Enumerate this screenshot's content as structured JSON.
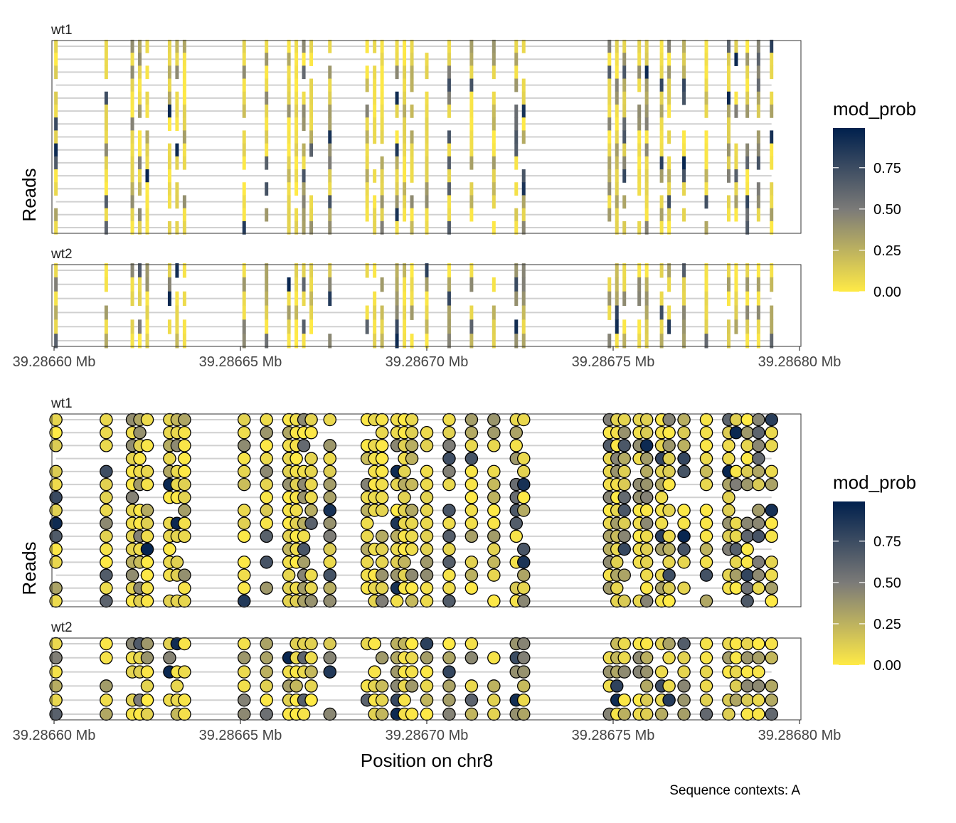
{
  "chart_data": [
    {
      "type": "heatmap",
      "mark": "tile",
      "panel_labels": [
        "wt1",
        "wt2"
      ],
      "y_axis_label": "Reads",
      "x_ticks": [
        "39.28660 Mb",
        "39.28665 Mb",
        "39.28670 Mb",
        "39.28675 Mb",
        "39.28680 Mb"
      ],
      "xlim": [
        39.2866,
        39.2868
      ],
      "legend": {
        "title": "mod_prob",
        "ticks": [
          "0.00",
          "0.25",
          "0.50",
          "0.75"
        ],
        "placement": "right"
      }
    },
    {
      "type": "scatter",
      "mark": "point",
      "panel_labels": [
        "wt1",
        "wt2"
      ],
      "y_axis_label": "Reads",
      "x_axis_label": "Position on chr8",
      "x_ticks": [
        "39.28660 Mb",
        "39.28665 Mb",
        "39.28670 Mb",
        "39.28675 Mb",
        "39.28680 Mb"
      ],
      "xlim": [
        39.2866,
        39.2868
      ],
      "legend": {
        "title": "mod_prob",
        "ticks": [
          "0.00",
          "0.25",
          "0.50",
          "0.75"
        ],
        "placement": "right"
      }
    }
  ],
  "colors": {
    "low": "#FFEA46",
    "mid": "#7C7B78",
    "high": "#00204D",
    "read_line": "#D0D0D0",
    "panel_border": "#333333"
  },
  "caption": "Sequence contexts: A"
}
